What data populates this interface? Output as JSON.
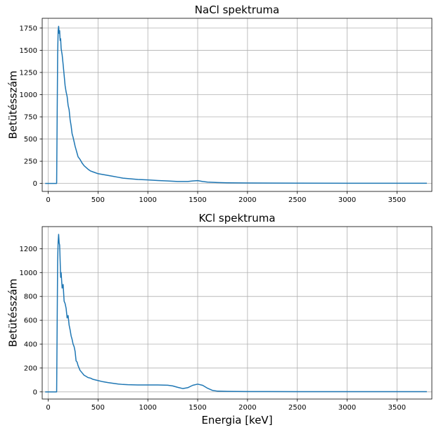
{
  "colors": {
    "series": "#1f77b4",
    "grid": "#b0b0b0"
  },
  "chart_data": [
    {
      "type": "line",
      "title": "NaCl spektruma",
      "xlabel": "",
      "ylabel": "Betütésszám",
      "xlim": [
        -60,
        3850
      ],
      "ylim": [
        -90,
        1860
      ],
      "xticks": [
        0,
        500,
        1000,
        1500,
        2000,
        2500,
        3000,
        3500
      ],
      "yticks": [
        0,
        250,
        500,
        750,
        1000,
        1250,
        1500,
        1750
      ],
      "grid": true,
      "series": [
        {
          "x": [
            -30,
            50,
            85,
            95,
            100,
            105,
            110,
            115,
            120,
            125,
            130,
            140,
            150,
            160,
            170,
            180,
            190,
            200,
            210,
            220,
            230,
            240,
            250,
            260,
            270,
            280,
            290,
            300,
            320,
            340,
            360,
            380,
            400,
            425,
            450,
            475,
            500,
            550,
            600,
            650,
            700,
            750,
            800,
            900,
            1000,
            1100,
            1200,
            1300,
            1400,
            1450,
            1500,
            1550,
            1600,
            1700,
            1800,
            2000,
            2500,
            3000,
            3500,
            3800
          ],
          "values": [
            0,
            0,
            0,
            1450,
            1720,
            1770,
            1690,
            1720,
            1610,
            1630,
            1520,
            1450,
            1340,
            1220,
            1100,
            1030,
            980,
            880,
            830,
            720,
            650,
            560,
            520,
            470,
            420,
            380,
            340,
            300,
            270,
            230,
            200,
            180,
            160,
            140,
            130,
            120,
            110,
            100,
            90,
            80,
            70,
            60,
            55,
            45,
            40,
            33,
            28,
            22,
            22,
            28,
            32,
            22,
            15,
            10,
            7,
            5,
            3,
            2,
            2,
            2
          ]
        }
      ]
    },
    {
      "type": "line",
      "title": "KCl spektruma",
      "xlabel": "Energia [keV]",
      "ylabel": "Betütésszám",
      "xlim": [
        -60,
        3850
      ],
      "ylim": [
        -60,
        1385
      ],
      "xticks": [
        0,
        500,
        1000,
        1500,
        2000,
        2500,
        3000,
        3500
      ],
      "yticks": [
        0,
        200,
        400,
        600,
        800,
        1000,
        1200
      ],
      "grid": true,
      "series": [
        {
          "x": [
            -30,
            60,
            85,
            95,
            100,
            105,
            110,
            115,
            120,
            125,
            130,
            140,
            150,
            160,
            170,
            180,
            190,
            200,
            210,
            220,
            230,
            240,
            250,
            260,
            270,
            280,
            290,
            300,
            320,
            340,
            360,
            380,
            400,
            425,
            450,
            475,
            500,
            550,
            600,
            650,
            700,
            750,
            800,
            900,
            1000,
            1100,
            1200,
            1250,
            1300,
            1350,
            1400,
            1450,
            1500,
            1550,
            1600,
            1650,
            1700,
            1800,
            2000,
            2500,
            3000,
            3500,
            3800
          ],
          "values": [
            0,
            0,
            0,
            1100,
            1260,
            1320,
            1250,
            1230,
            1100,
            960,
            1000,
            870,
            900,
            760,
            740,
            700,
            620,
            640,
            560,
            520,
            470,
            440,
            400,
            380,
            340,
            260,
            250,
            220,
            180,
            160,
            140,
            130,
            120,
            115,
            105,
            100,
            95,
            85,
            78,
            72,
            66,
            62,
            60,
            58,
            58,
            58,
            56,
            50,
            38,
            28,
            35,
            55,
            65,
            55,
            30,
            12,
            6,
            4,
            3,
            2,
            2,
            2,
            2
          ]
        }
      ]
    }
  ]
}
